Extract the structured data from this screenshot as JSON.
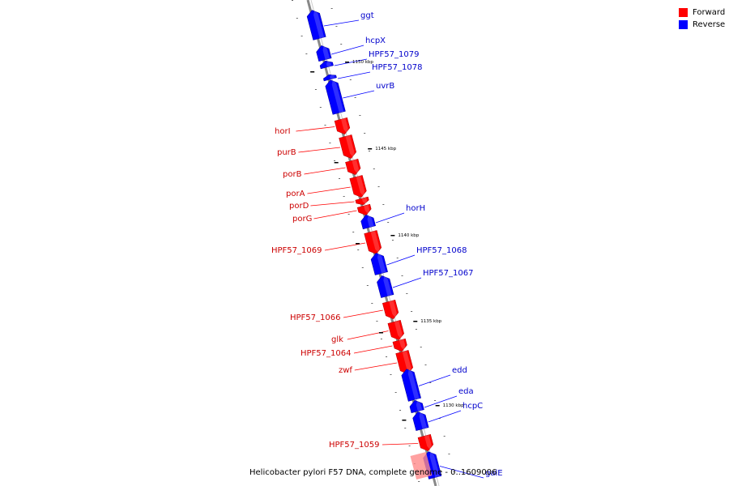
{
  "colors": {
    "forward": "#ff0000",
    "forward_light": "#ff8a8a",
    "reverse": "#0000ff",
    "axis": "#888888"
  },
  "legend": {
    "forward_label": "Forward",
    "reverse_label": "Reverse"
  },
  "genome": {
    "caption": "Helicobacter pylori F57 DNA, complete genome - 0..1609006",
    "axis_markers": [
      "1150 kbp",
      "1145 kbp",
      "1140 kbp",
      "1135 kbp",
      "1130 kbp"
    ]
  },
  "genes": [
    {
      "name": "ggt",
      "strand": "reverse"
    },
    {
      "name": "hcpX",
      "strand": "reverse"
    },
    {
      "name": "HPF57_1079",
      "strand": "reverse"
    },
    {
      "name": "HPF57_1078",
      "strand": "reverse"
    },
    {
      "name": "uvrB",
      "strand": "reverse"
    },
    {
      "name": "horI",
      "strand": "forward"
    },
    {
      "name": "purB",
      "strand": "forward"
    },
    {
      "name": "porB",
      "strand": "forward"
    },
    {
      "name": "porA",
      "strand": "forward"
    },
    {
      "name": "porD",
      "strand": "forward"
    },
    {
      "name": "porG",
      "strand": "forward"
    },
    {
      "name": "horH",
      "strand": "reverse"
    },
    {
      "name": "HPF57_1069",
      "strand": "forward"
    },
    {
      "name": "HPF57_1068",
      "strand": "reverse"
    },
    {
      "name": "HPF57_1067",
      "strand": "reverse"
    },
    {
      "name": "HPF57_1066",
      "strand": "forward"
    },
    {
      "name": "glk",
      "strand": "forward"
    },
    {
      "name": "HPF57_1064",
      "strand": "forward"
    },
    {
      "name": "zwf",
      "strand": "forward"
    },
    {
      "name": "edd",
      "strand": "reverse"
    },
    {
      "name": "eda",
      "strand": "reverse"
    },
    {
      "name": "hcpC",
      "strand": "reverse"
    },
    {
      "name": "HPF57_1059",
      "strand": "forward"
    },
    {
      "name": "galE",
      "strand": "reverse"
    }
  ]
}
